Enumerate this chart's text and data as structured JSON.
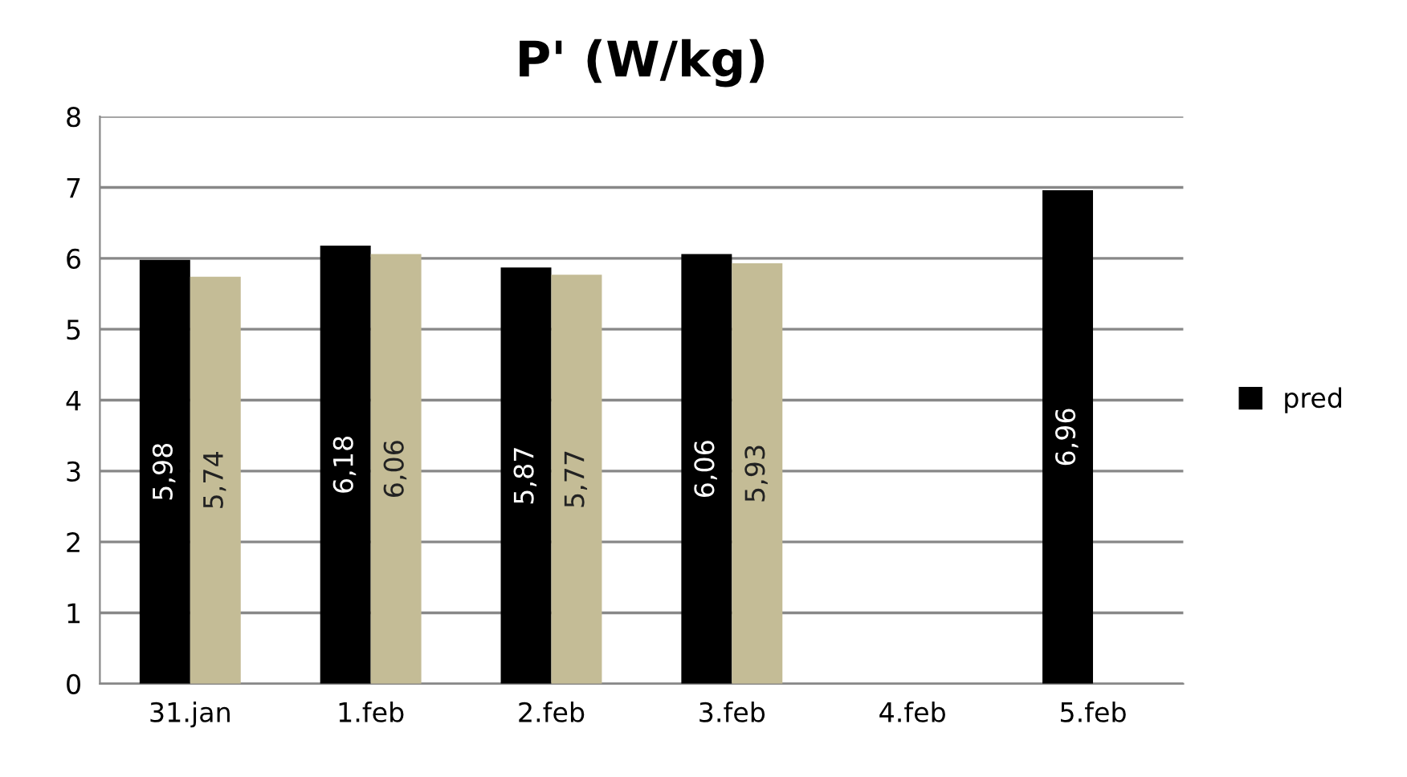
{
  "chart_data": {
    "type": "bar",
    "title": "P' (W/kg)",
    "categories": [
      "31.jan",
      "1.feb",
      "2.feb",
      "3.feb",
      "4.feb",
      "5.feb"
    ],
    "series": [
      {
        "name": "pred",
        "color": "#000000",
        "values": [
          5.98,
          6.18,
          5.87,
          6.06,
          null,
          6.96
        ],
        "value_labels": [
          "5,98",
          "6,18",
          "5,87",
          "6,06",
          null,
          "6,96"
        ]
      },
      {
        "color": "#c4bc96",
        "values": [
          5.74,
          6.06,
          5.77,
          5.93,
          null,
          null
        ],
        "value_labels": [
          "5,74",
          "6,06",
          "5,77",
          "5,93",
          null,
          null
        ]
      }
    ],
    "ylim": [
      0,
      8
    ],
    "yticks": [
      0,
      1,
      2,
      3,
      4,
      5,
      6,
      7,
      8
    ],
    "grid": "y",
    "legend": "right"
  }
}
